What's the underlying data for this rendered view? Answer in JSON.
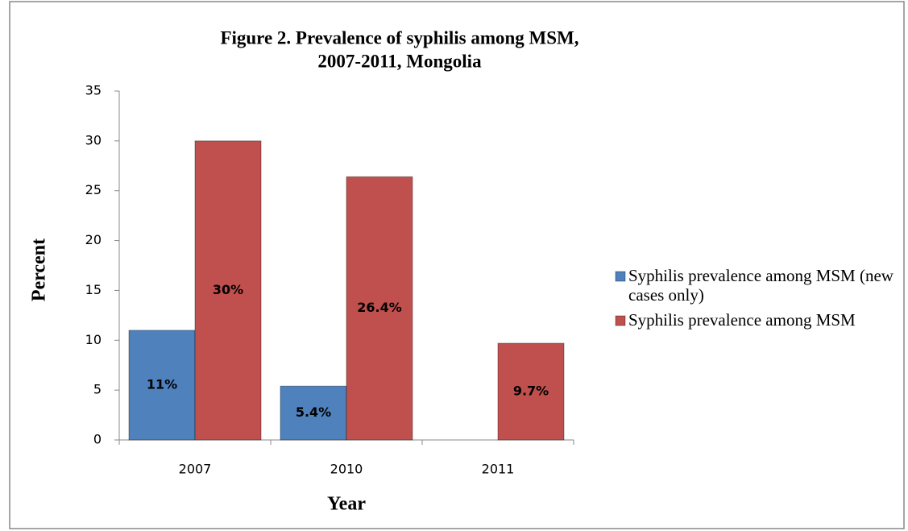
{
  "chart_data": {
    "type": "bar",
    "title": [
      "Figure 2. Prevalence of syphilis among MSM,",
      "2007-2011, Mongolia"
    ],
    "x_label": "Year",
    "y_label": "Percent",
    "categories": [
      "2007",
      "2010",
      "2011"
    ],
    "series": [
      {
        "name": "Syphilis prevalence among MSM (new cases only)",
        "color": "#4f81bd",
        "values": [
          11,
          5.4,
          null
        ],
        "value_labels": [
          "11%",
          "5.4%",
          null
        ]
      },
      {
        "name": "Syphilis prevalence among MSM",
        "color": "#c0504d",
        "values": [
          30,
          26.4,
          9.7
        ],
        "value_labels": [
          "30%",
          "26.4%",
          "9.7%"
        ]
      }
    ],
    "ylim": [
      0,
      35
    ],
    "yticks": [
      0,
      5,
      10,
      15,
      20,
      25,
      30,
      35
    ],
    "grid": false,
    "legend": "right"
  }
}
